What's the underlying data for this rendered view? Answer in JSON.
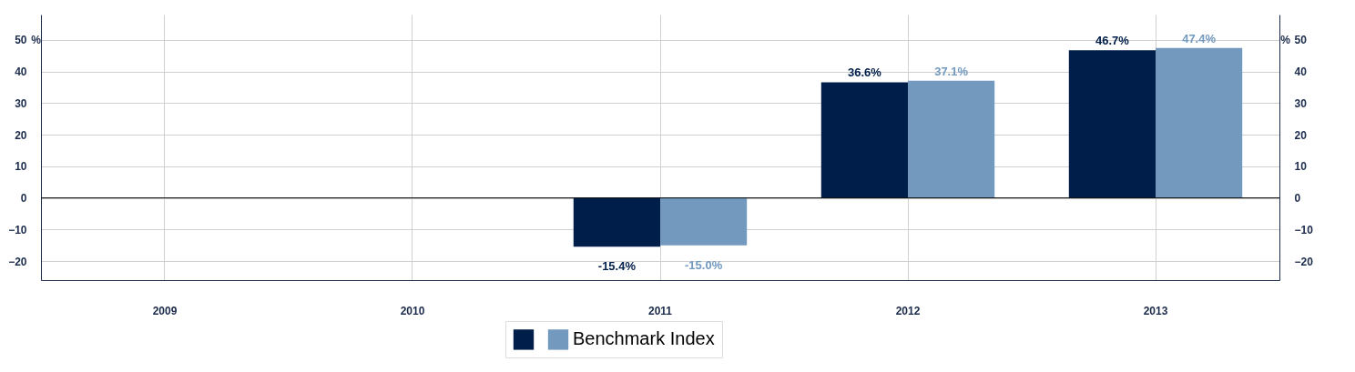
{
  "chart_data": {
    "type": "bar",
    "categories": [
      "2009",
      "2010",
      "2011",
      "2012",
      "2013"
    ],
    "series": [
      {
        "color": "#001e4a",
        "values": [
          null,
          null,
          -15.4,
          36.6,
          46.7
        ],
        "value_labels": [
          null,
          null,
          "-15.4%",
          "36.6%",
          "46.7%"
        ]
      },
      {
        "name": "Benchmark Index",
        "color": "#7399bf",
        "values": [
          null,
          null,
          -15.0,
          37.1,
          47.4
        ],
        "value_labels": [
          null,
          null,
          "-15.0%",
          "37.1%",
          "47.4%"
        ]
      }
    ],
    "ylabel": "%",
    "y2label": "%",
    "ylim": [
      -26,
      58
    ],
    "yticks": [
      -20,
      -10,
      0,
      10,
      20,
      30,
      40,
      50
    ],
    "y2lim": [
      -26,
      58
    ],
    "y2ticks": [
      -20,
      -10,
      0,
      10,
      20,
      30,
      40,
      50
    ],
    "ref_lines": [
      {
        "axis": "y",
        "value": 0,
        "color": "#000000"
      }
    ],
    "grid": true,
    "legend": "bottom"
  }
}
